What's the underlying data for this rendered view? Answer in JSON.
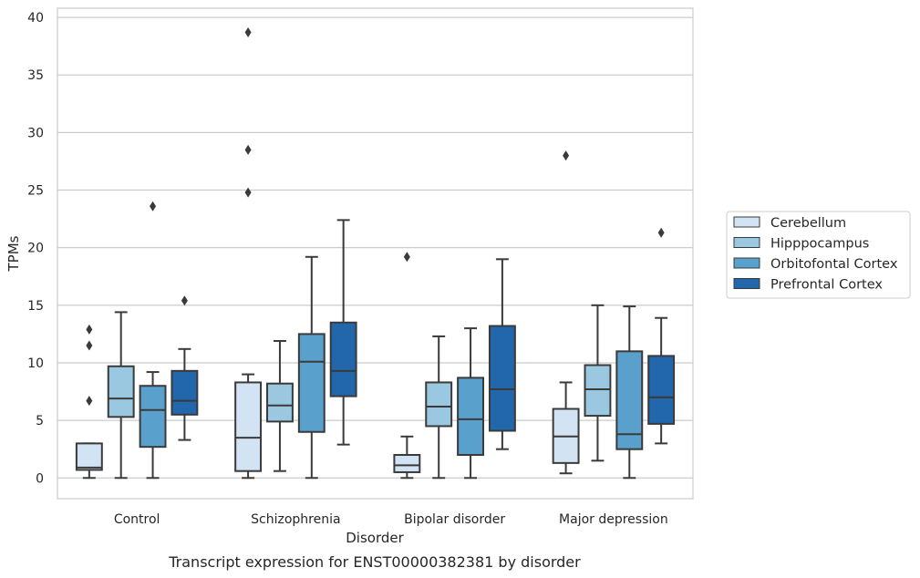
{
  "chart_data": {
    "type": "box",
    "title": "",
    "caption": "Transcript expression for ENST00000382381 by disorder",
    "xlabel": "Disorder",
    "ylabel": "TPMs",
    "ylim": [
      -1.8,
      40.8
    ],
    "yticks": [
      0,
      5,
      10,
      15,
      20,
      25,
      30,
      35,
      40
    ],
    "grid": true,
    "legend_position": "right",
    "categories": [
      "Control",
      "Schizophrenia",
      "Bipolar disorder",
      "Major depression"
    ],
    "series": [
      {
        "name": "Cerebellum",
        "color": "#d2e3f3",
        "boxes": [
          {
            "min": 0.0,
            "q1": 0.7,
            "median": 0.9,
            "q3": 3.0,
            "max": 3.0,
            "outliers": [
              6.7,
              11.5,
              12.9
            ]
          },
          {
            "min": 0.0,
            "q1": 0.6,
            "median": 3.5,
            "q3": 8.3,
            "max": 9.0,
            "outliers": [
              24.8,
              28.5,
              38.7
            ]
          },
          {
            "min": 0.0,
            "q1": 0.5,
            "median": 1.1,
            "q3": 2.0,
            "max": 3.6,
            "outliers": [
              19.2
            ]
          },
          {
            "min": 0.4,
            "q1": 1.3,
            "median": 3.6,
            "q3": 6.0,
            "max": 8.3,
            "outliers": [
              28.0
            ]
          }
        ]
      },
      {
        "name": "Hipppocampus",
        "color": "#9ac8e0",
        "boxes": [
          {
            "min": 0.0,
            "q1": 5.3,
            "median": 6.9,
            "q3": 9.7,
            "max": 14.4,
            "outliers": []
          },
          {
            "min": 0.6,
            "q1": 4.9,
            "median": 6.3,
            "q3": 8.2,
            "max": 11.9,
            "outliers": []
          },
          {
            "min": 0.0,
            "q1": 4.5,
            "median": 6.2,
            "q3": 8.3,
            "max": 12.3,
            "outliers": []
          },
          {
            "min": 1.5,
            "q1": 5.4,
            "median": 7.7,
            "q3": 9.8,
            "max": 15.0,
            "outliers": []
          }
        ]
      },
      {
        "name": "Orbitofontal Cortex",
        "color": "#5aa0cd",
        "boxes": [
          {
            "min": 0.0,
            "q1": 2.7,
            "median": 5.9,
            "q3": 8.0,
            "max": 9.2,
            "outliers": [
              23.6
            ]
          },
          {
            "min": 0.0,
            "q1": 4.0,
            "median": 10.1,
            "q3": 12.5,
            "max": 19.2,
            "outliers": []
          },
          {
            "min": 0.0,
            "q1": 2.0,
            "median": 5.1,
            "q3": 8.7,
            "max": 13.0,
            "outliers": []
          },
          {
            "min": 0.0,
            "q1": 2.5,
            "median": 3.8,
            "q3": 11.0,
            "max": 14.9,
            "outliers": []
          }
        ]
      },
      {
        "name": "Prefrontal Cortex",
        "color": "#2266ab",
        "boxes": [
          {
            "min": 3.3,
            "q1": 5.5,
            "median": 6.7,
            "q3": 9.3,
            "max": 11.2,
            "outliers": [
              15.4
            ]
          },
          {
            "min": 2.9,
            "q1": 7.1,
            "median": 9.3,
            "q3": 13.5,
            "max": 22.4,
            "outliers": []
          },
          {
            "min": 2.5,
            "q1": 4.1,
            "median": 7.7,
            "q3": 13.2,
            "max": 19.0,
            "outliers": []
          },
          {
            "min": 3.0,
            "q1": 4.7,
            "median": 7.0,
            "q3": 10.6,
            "max": 13.9,
            "outliers": [
              21.3
            ]
          }
        ]
      }
    ]
  }
}
